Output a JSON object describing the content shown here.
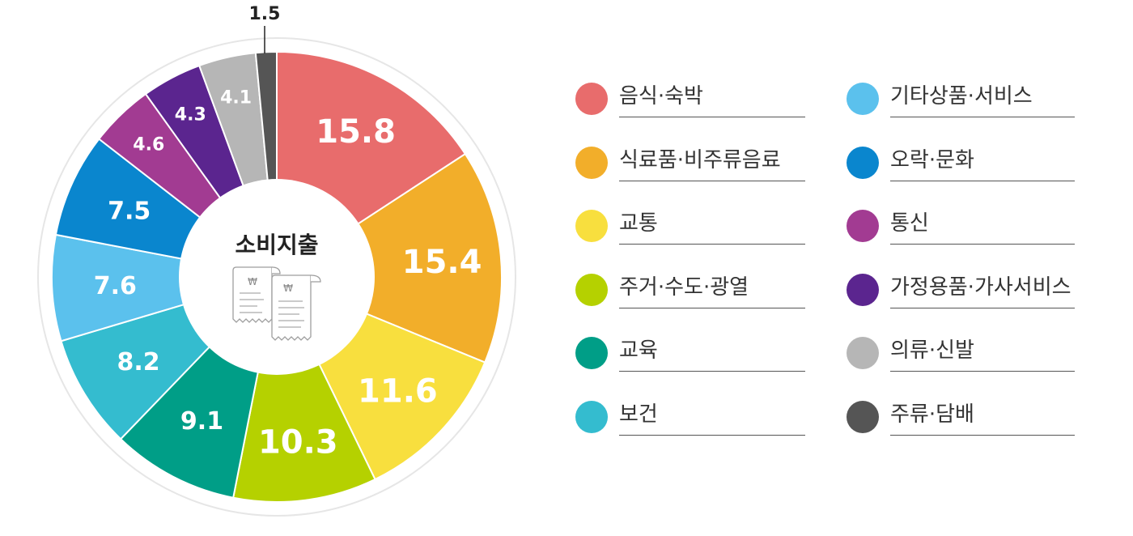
{
  "colors": {
    "food_lodging": "#E86C6C",
    "food_beverage": "#F2AE2A",
    "transport": "#F8DF3E",
    "housing_utilities": "#B5D100",
    "education": "#009E87",
    "health": "#34BCCF",
    "other_goods": "#5BC1ED",
    "recreation": "#0A86CE",
    "communication": "#A23B92",
    "household": "#5B258F",
    "clothing": "#B6B6B6",
    "alcohol_tobacco": "#555555"
  },
  "center": {
    "title": "소비지출",
    "icon": "receipt-icon",
    "currency_symbol": "₩"
  },
  "chart_data": {
    "type": "pie",
    "donut": true,
    "categories": [
      "음식·숙박",
      "식료품·비주류음료",
      "교통",
      "주거·수도·광열",
      "교육",
      "보건",
      "기타상품·서비스",
      "오락·문화",
      "통신",
      "가정용품·가사서비스",
      "의류·신발",
      "주류·담배"
    ],
    "values": [
      15.8,
      15.4,
      11.6,
      10.3,
      9.1,
      8.2,
      7.6,
      7.5,
      4.6,
      4.3,
      4.1,
      1.5
    ],
    "value_labels": [
      "15.8",
      "15.4",
      "11.6",
      "10.3",
      "9.1",
      "8.2",
      "7.6",
      "7.5",
      "4.6",
      "4.3",
      "4.1",
      "1.5"
    ],
    "slice_colors": [
      "#E86C6C",
      "#F2AE2A",
      "#F8DF3E",
      "#B5D100",
      "#009E87",
      "#34BCCF",
      "#5BC1ED",
      "#0A86CE",
      "#A23B92",
      "#5B258F",
      "#B6B6B6",
      "#555555"
    ],
    "title": "소비지출",
    "legend_position": "right"
  },
  "legend": {
    "items": [
      {
        "label": "음식·숙박",
        "color": "#E86C6C"
      },
      {
        "label": "식료품·비주류음료",
        "color": "#F2AE2A"
      },
      {
        "label": "교통",
        "color": "#F8DF3E"
      },
      {
        "label": "주거·수도·광열",
        "color": "#B5D100"
      },
      {
        "label": "교육",
        "color": "#009E87"
      },
      {
        "label": "보건",
        "color": "#34BCCF"
      },
      {
        "label": "기타상품·서비스",
        "color": "#5BC1ED"
      },
      {
        "label": "오락·문화",
        "color": "#0A86CE"
      },
      {
        "label": "통신",
        "color": "#A23B92"
      },
      {
        "label": "가정용품·가사서비스",
        "color": "#5B258F"
      },
      {
        "label": "의류·신발",
        "color": "#B6B6B6"
      },
      {
        "label": "주류·담배",
        "color": "#555555"
      }
    ]
  }
}
